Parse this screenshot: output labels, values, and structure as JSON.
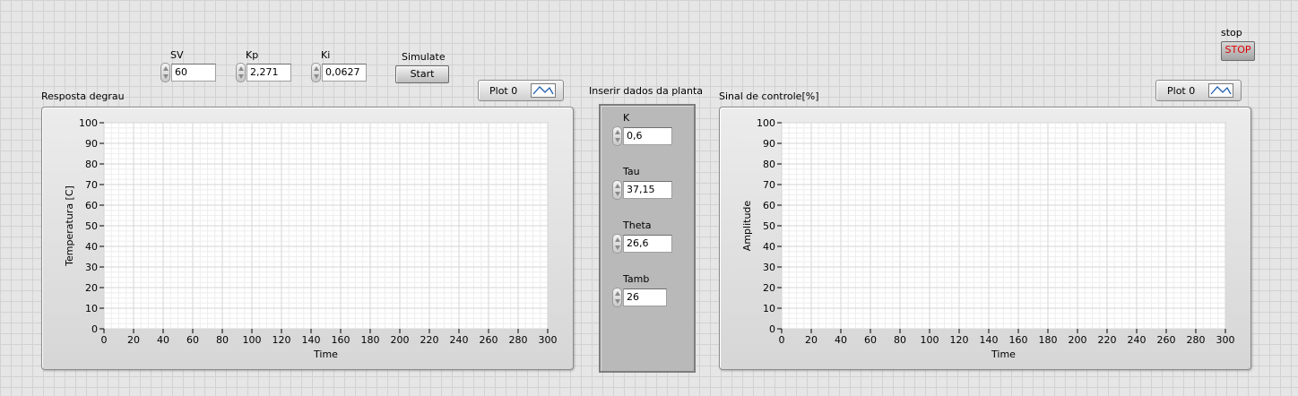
{
  "controls": {
    "sv": {
      "label": "SV",
      "value": "60"
    },
    "kp": {
      "label": "Kp",
      "value": "2,271"
    },
    "ki": {
      "label": "Ki",
      "value": "0,0627"
    },
    "simulate": {
      "label": "Simulate",
      "button": "Start"
    },
    "stop": {
      "label": "stop",
      "button": "STOP"
    }
  },
  "plant": {
    "title": "Inserir dados da planta",
    "k": {
      "label": "K",
      "value": "0,6"
    },
    "tau": {
      "label": "Tau",
      "value": "37,15"
    },
    "theta": {
      "label": "Theta",
      "value": "26,6"
    },
    "tamb": {
      "label": "Tamb",
      "value": "26"
    }
  },
  "graph_left": {
    "title": "Resposta degrau",
    "legend": "Plot 0",
    "xlabel": "Time",
    "ylabel": "Temperatura [C]"
  },
  "graph_right": {
    "title": "Sinal de controle[%]",
    "legend": "Plot 0",
    "xlabel": "Time",
    "ylabel": "Amplitude"
  },
  "chart_data": [
    {
      "type": "line",
      "title": "Resposta degrau",
      "xlabel": "Time",
      "ylabel": "Temperatura [C]",
      "xlim": [
        0,
        300
      ],
      "ylim": [
        0,
        100
      ],
      "x_ticks": [
        0,
        20,
        40,
        60,
        80,
        100,
        120,
        140,
        160,
        180,
        200,
        220,
        240,
        260,
        280,
        300
      ],
      "y_ticks": [
        0,
        10,
        20,
        30,
        40,
        50,
        60,
        70,
        80,
        90,
        100
      ],
      "grid": true,
      "series": [
        {
          "name": "Plot 0",
          "x": [],
          "y": []
        }
      ]
    },
    {
      "type": "line",
      "title": "Sinal de controle[%]",
      "xlabel": "Time",
      "ylabel": "Amplitude",
      "xlim": [
        0,
        300
      ],
      "ylim": [
        0,
        100
      ],
      "x_ticks": [
        0,
        20,
        40,
        60,
        80,
        100,
        120,
        140,
        160,
        180,
        200,
        220,
        240,
        260,
        280,
        300
      ],
      "y_ticks": [
        0,
        10,
        20,
        30,
        40,
        50,
        60,
        70,
        80,
        90,
        100
      ],
      "grid": true,
      "series": [
        {
          "name": "Plot 0",
          "x": [],
          "y": []
        }
      ]
    }
  ]
}
